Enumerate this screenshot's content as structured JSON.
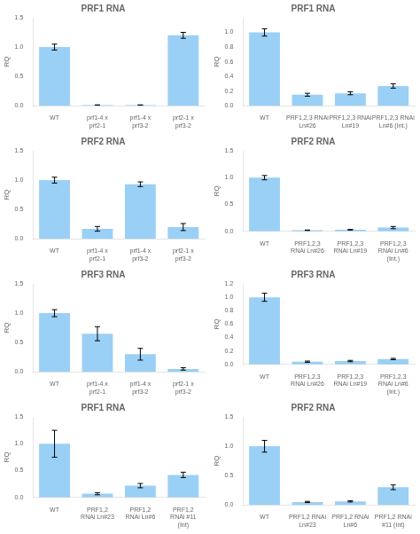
{
  "chart_data": [
    {
      "type": "bar",
      "title": "PRF1 RNA",
      "y_label": "RQ",
      "categories": [
        "WT",
        "prf1-4 x\nprf2-1",
        "prf1-4 x\nprf3-2",
        "prf2-1 x\nprf3-2"
      ],
      "values": [
        1.0,
        0.01,
        0.01,
        1.2
      ],
      "errors": [
        0.05,
        0.005,
        0.005,
        0.05
      ],
      "ylim": [
        0,
        1.5
      ],
      "yticks": [
        {
          "value": 0,
          "label": "0.0"
        },
        0.5,
        {
          "value": 1.0,
          "label": "1.0"
        },
        1.5
      ],
      "grid": false
    },
    {
      "type": "bar",
      "title": "PRF1 RNA",
      "y_label": "RQ",
      "categories": [
        "WT",
        "PRF1,2,3 RNAi\nLn#26",
        "PRF1,2,3 RNAi\nLn#19",
        "PRF1,2,3 RNAi\nLn#6 (Int.)"
      ],
      "values": [
        1.0,
        0.15,
        0.17,
        0.27
      ],
      "errors": [
        0.05,
        0.02,
        0.02,
        0.03
      ],
      "ylim": [
        0,
        1.2
      ],
      "yticks": [
        {
          "value": 0,
          "label": "0.0"
        },
        0.2,
        0.4,
        0.6,
        0.8,
        {
          "value": 1.0,
          "label": "1.0"
        }
      ],
      "grid": false
    },
    {
      "type": "bar",
      "title": "PRF2 RNA",
      "y_label": "RQ",
      "categories": [
        "WT",
        "prf1-4 x\nprf2-1",
        "prf1-4 x\nprf3-2",
        "prf2-1 x\nprf3-2"
      ],
      "values": [
        1.0,
        0.17,
        0.93,
        0.2
      ],
      "errors": [
        0.05,
        0.04,
        0.04,
        0.06
      ],
      "ylim": [
        0,
        1.5
      ],
      "yticks": [
        {
          "value": 0,
          "label": "0.0"
        },
        0.5,
        {
          "value": 1.0,
          "label": "1.0"
        },
        1.5
      ],
      "grid": false
    },
    {
      "type": "bar",
      "title": "PRF2 RNA",
      "y_label": "RQ",
      "categories": [
        "WT",
        "PRF1,2,3\nRNAi Ln#26",
        "PRF1,2,3\nRNAi Ln#19",
        "PRF1,2,3\nRNAi Ln#6\n(Int.)"
      ],
      "values": [
        1.0,
        0.02,
        0.03,
        0.07
      ],
      "errors": [
        0.04,
        0.005,
        0.005,
        0.02
      ],
      "ylim": [
        0,
        1.5
      ],
      "yticks": [
        {
          "value": 0,
          "label": "0.0"
        },
        0.5,
        {
          "value": 1.0,
          "label": "1.0"
        },
        1.5
      ],
      "grid": false
    },
    {
      "type": "bar",
      "title": "PRF3 RNA",
      "y_label": "RQ",
      "categories": [
        "WT",
        "prf1-4 x\nprf2-1",
        "prf1-4 x\nprf3-2",
        "prf2-1 x\nprf3-2"
      ],
      "values": [
        1.0,
        0.65,
        0.3,
        0.05
      ],
      "errors": [
        0.06,
        0.12,
        0.1,
        0.02
      ],
      "ylim": [
        0,
        1.5
      ],
      "yticks": [
        {
          "value": 0,
          "label": "0.0"
        },
        0.5,
        {
          "value": 1.0,
          "label": "1.0"
        },
        1.5
      ],
      "grid": false
    },
    {
      "type": "bar",
      "title": "PRF3 RNA",
      "y_label": "RQ",
      "categories": [
        "WT",
        "PRF1,2,3\nRNAi Ln#26",
        "PRF1,2,3\nRNAi Ln#19",
        "PRF1,2,3\nRNAi Ln#6\n(Int.)"
      ],
      "values": [
        1.0,
        0.04,
        0.05,
        0.08
      ],
      "errors": [
        0.06,
        0.01,
        0.01,
        0.01
      ],
      "ylim": [
        0,
        1.2
      ],
      "yticks": [
        {
          "value": 0,
          "label": "0.0"
        },
        0.2,
        0.4,
        0.6,
        0.8,
        {
          "value": 1.0,
          "label": "1.0"
        },
        1.2
      ],
      "grid": false
    },
    {
      "type": "bar",
      "title": "PRF1 RNA",
      "y_label": "RQ",
      "categories": [
        "WT",
        "PRF1,2\nRNAi Ln#23",
        "PRF1,2\nRNAi Ln#6",
        "PRF1,2\nRNAi #11\n(Int)"
      ],
      "values": [
        1.0,
        0.07,
        0.22,
        0.42
      ],
      "errors": [
        0.25,
        0.02,
        0.04,
        0.05
      ],
      "ylim": [
        0,
        1.5
      ],
      "yticks": [
        {
          "value": 0,
          "label": "0.0"
        },
        0.5,
        {
          "value": 1.0,
          "label": "1.0"
        },
        1.5
      ],
      "grid": false
    },
    {
      "type": "bar",
      "title": "PRF2 RNA",
      "y_label": "RQ",
      "categories": [
        "WT",
        "PRF1,2 RNAi\nLn#23",
        "PRF1,2 RNAi\nLn#6",
        "PRF1,2 RNAi\n#11 (Int)"
      ],
      "values": [
        1.0,
        0.05,
        0.06,
        0.3
      ],
      "errors": [
        0.1,
        0.01,
        0.01,
        0.04
      ],
      "ylim": [
        0,
        1.5
      ],
      "yticks": [
        {
          "value": 0,
          "label": "0.0"
        },
        0.5,
        {
          "value": 1.0,
          "label": "1.0"
        },
        1.5
      ],
      "grid": false
    }
  ]
}
